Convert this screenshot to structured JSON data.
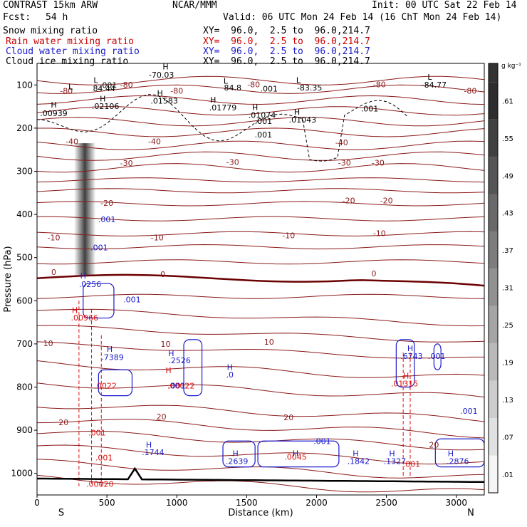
{
  "header": {
    "model": "CONTRAST 15km ARW",
    "org": "NCAR/MMM",
    "init": "Init: 00 UTC Sat 22 Feb 14",
    "fcst_label": "Fcst:",
    "fcst_value": "54 h",
    "valid": "Valid: 06 UTC Mon 24 Feb 14 (16 ChT Mon 24 Feb 14)",
    "fields": [
      {
        "name": "Snow mixing ratio",
        "xy": "XY=  96.0,  2.5 to  96.0,214.7",
        "color": "#000000"
      },
      {
        "name": "Rain water mixing ratio",
        "xy": "XY=  96.0,  2.5 to  96.0,214.7",
        "color": "#cc0000"
      },
      {
        "name": "Cloud water mixing ratio",
        "xy": "XY=  96.0,  2.5 to  96.0,214.7",
        "color": "#1a1acc"
      },
      {
        "name": "Cloud ice mixing ratio",
        "xy": "XY=  96.0,  2.5 to  96.0,214.7",
        "color": "#000000"
      }
    ]
  },
  "colors": {
    "temperature": "#8b1a1a",
    "zero_isotherm": "#6b0000",
    "rain": "#dd1111",
    "cloud_water": "#1a1acc",
    "ice": "#000000",
    "terrain": "#000000"
  },
  "chart_data": {
    "type": "cross-section",
    "xlabel": "Distance (km)",
    "ylabel": "Pressure (hPa)",
    "xlim": [
      0,
      3200
    ],
    "ylim": [
      1050,
      50
    ],
    "x_ticks": [
      "0",
      "500",
      "1000",
      "1500",
      "2000",
      "2500",
      "3000"
    ],
    "y_ticks": [
      "100",
      "200",
      "300",
      "400",
      "500",
      "600",
      "700",
      "800",
      "900",
      "1000"
    ],
    "x_end_labels": {
      "left": "S",
      "right": "N"
    },
    "colorbar": {
      "unit": "g kg⁻¹",
      "labels": [
        ".01",
        ".07",
        ".13",
        ".19",
        ".25",
        ".31",
        ".37",
        ".43",
        ".49",
        ".55",
        ".61"
      ]
    },
    "isotherm_labels": [
      {
        "text": "-80",
        "x": 640,
        "p": 106
      },
      {
        "text": "-80",
        "x": 210,
        "p": 120
      },
      {
        "text": "-80",
        "x": 1000,
        "p": 120
      },
      {
        "text": "-80",
        "x": 1550,
        "p": 105
      },
      {
        "text": "-80",
        "x": 2450,
        "p": 105
      },
      {
        "text": "-80",
        "x": 3100,
        "p": 120
      },
      {
        "text": "-40",
        "x": 250,
        "p": 237
      },
      {
        "text": "-40",
        "x": 840,
        "p": 237
      },
      {
        "text": "-40",
        "x": 2180,
        "p": 240
      },
      {
        "text": "-30",
        "x": 640,
        "p": 288
      },
      {
        "text": "-30",
        "x": 1400,
        "p": 285
      },
      {
        "text": "-30",
        "x": 2200,
        "p": 287
      },
      {
        "text": "-30",
        "x": 2440,
        "p": 287
      },
      {
        "text": "-20",
        "x": 500,
        "p": 380
      },
      {
        "text": "-20",
        "x": 2230,
        "p": 374
      },
      {
        "text": "-20",
        "x": 2500,
        "p": 374
      },
      {
        "text": "-10",
        "x": 120,
        "p": 460
      },
      {
        "text": "-10",
        "x": 860,
        "p": 460
      },
      {
        "text": "-10",
        "x": 1800,
        "p": 455
      },
      {
        "text": "-10",
        "x": 2450,
        "p": 450
      },
      {
        "text": "0",
        "x": 120,
        "p": 540
      },
      {
        "text": "0",
        "x": 900,
        "p": 545
      },
      {
        "text": "0",
        "x": 2410,
        "p": 543
      },
      {
        "text": "10",
        "x": 80,
        "p": 705
      },
      {
        "text": "10",
        "x": 920,
        "p": 707
      },
      {
        "text": "10",
        "x": 1660,
        "p": 702
      },
      {
        "text": "20",
        "x": 190,
        "p": 888
      },
      {
        "text": "20",
        "x": 890,
        "p": 875
      },
      {
        "text": "20",
        "x": 1800,
        "p": 877
      },
      {
        "text": "20",
        "x": 2840,
        "p": 940
      }
    ],
    "snow_max": [
      {
        "text": "H",
        "x": 120,
        "p": 152
      },
      {
        "text": ".00939",
        "x": 120,
        "p": 172
      },
      {
        "text": "H",
        "x": 470,
        "p": 138
      },
      {
        "text": ".02106",
        "x": 490,
        "p": 156
      },
      {
        "text": "H",
        "x": 880,
        "p": 125
      },
      {
        "text": ".01583",
        "x": 910,
        "p": 143
      },
      {
        "text": "H",
        "x": 1260,
        "p": 141
      },
      {
        "text": ".01779",
        "x": 1330,
        "p": 159
      },
      {
        "text": "H",
        "x": 1560,
        "p": 158
      },
      {
        "text": ".01074",
        "x": 1610,
        "p": 176
      },
      {
        "text": "H",
        "x": 1860,
        "p": 169
      },
      {
        "text": ".01043",
        "x": 1900,
        "p": 187
      },
      {
        "text": ".001",
        "x": 1620,
        "p": 222
      },
      {
        "text": ".001",
        "x": 1620,
        "p": 190
      }
    ],
    "ice_labels": [
      {
        "text": "L",
        "x": 420,
        "p": 95
      },
      {
        "text": ".001",
        "x": 510,
        "p": 107
      },
      {
        "text": "L",
        "x": 240,
        "p": 110
      },
      {
        "text": "84.44",
        "x": 480,
        "p": 114
      },
      {
        "text": "H",
        "x": 920,
        "p": 64
      },
      {
        "text": "-70.03",
        "x": 890,
        "p": 83
      },
      {
        "text": "L",
        "x": 1350,
        "p": 97
      },
      {
        "text": "84.8",
        "x": 1400,
        "p": 113
      },
      {
        "text": ".001",
        "x": 1660,
        "p": 115
      },
      {
        "text": "L",
        "x": 1870,
        "p": 95
      },
      {
        "text": "-83.35",
        "x": 1950,
        "p": 113
      },
      {
        "text": "L",
        "x": 2810,
        "p": 88
      },
      {
        "text": "-84.77",
        "x": 2840,
        "p": 106
      },
      {
        "text": ".001",
        "x": 2380,
        "p": 161
      }
    ],
    "rain_labels": [
      {
        "text": "H",
        "x": 270,
        "p": 628
      },
      {
        "text": ".00966",
        "x": 340,
        "p": 646
      },
      {
        "text": ".0022",
        "x": 490,
        "p": 803
      },
      {
        "text": "H",
        "x": 940,
        "p": 768
      },
      {
        "text": ".00022",
        "x": 1030,
        "p": 803
      },
      {
        "text": ".001",
        "x": 430,
        "p": 912
      },
      {
        "text": ".001",
        "x": 480,
        "p": 970
      },
      {
        "text": ".00020",
        "x": 450,
        "p": 1031
      },
      {
        "text": "H",
        "x": 2640,
        "p": 780
      },
      {
        "text": ".01315",
        "x": 2630,
        "p": 798
      },
      {
        "text": ".001",
        "x": 2680,
        "p": 985
      },
      {
        "text": ".0045",
        "x": 1850,
        "p": 968
      }
    ],
    "cloud_labels": [
      {
        "text": "H",
        "x": 330,
        "p": 548
      },
      {
        "text": ".0256",
        "x": 380,
        "p": 568
      },
      {
        "text": ".001",
        "x": 680,
        "p": 604
      },
      {
        "text": ".001",
        "x": 500,
        "p": 418
      },
      {
        "text": ".001",
        "x": 445,
        "p": 483
      },
      {
        "text": "H",
        "x": 520,
        "p": 718
      },
      {
        "text": ".7389",
        "x": 540,
        "p": 737
      },
      {
        "text": "H",
        "x": 960,
        "p": 728
      },
      {
        "text": ".2526",
        "x": 1020,
        "p": 745
      },
      {
        "text": ".001",
        "x": 1000,
        "p": 803
      },
      {
        "text": "H",
        "x": 1380,
        "p": 760
      },
      {
        "text": ".0",
        "x": 1380,
        "p": 778
      },
      {
        "text": "H",
        "x": 800,
        "p": 940
      },
      {
        "text": ".1744",
        "x": 830,
        "p": 958
      },
      {
        "text": "H",
        "x": 1420,
        "p": 960
      },
      {
        "text": ".2639",
        "x": 1430,
        "p": 978
      },
      {
        "text": "H",
        "x": 1850,
        "p": 960
      },
      {
        "text": ".001",
        "x": 2040,
        "p": 932
      },
      {
        "text": "H",
        "x": 2280,
        "p": 960
      },
      {
        "text": ".1842",
        "x": 2300,
        "p": 978
      },
      {
        "text": "H",
        "x": 2540,
        "p": 960
      },
      {
        "text": ".1327",
        "x": 2560,
        "p": 978
      },
      {
        "text": "H",
        "x": 2670,
        "p": 717
      },
      {
        "text": ".6743",
        "x": 2680,
        "p": 735
      },
      {
        "text": ".001",
        "x": 2860,
        "p": 735
      },
      {
        "text": ".001",
        "x": 3090,
        "p": 862
      },
      {
        "text": "H",
        "x": 2960,
        "p": 960
      },
      {
        "text": ".2876",
        "x": 3010,
        "p": 978
      }
    ]
  }
}
